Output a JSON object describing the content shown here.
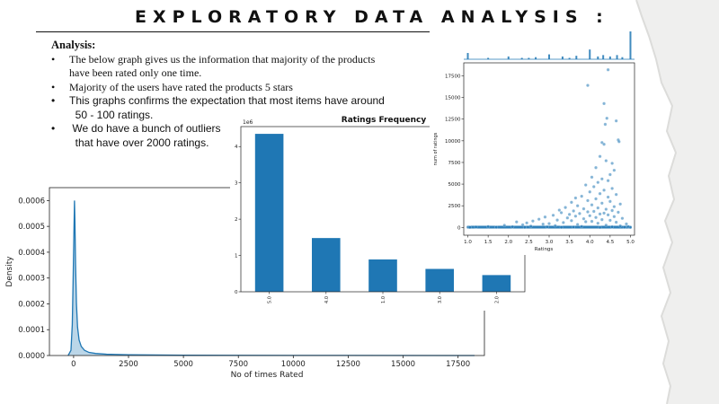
{
  "slide": {
    "title": "EXPLORATORY DATA ANALYSIS :",
    "colors": {
      "background": "#ffffff",
      "torn_edge": "#efefee",
      "accent": "#1f77b4"
    }
  },
  "analysis": {
    "heading": "Analysis:",
    "bullets": [
      {
        "line1": "The below graph gives  us the information that majority of the products",
        "line2": "have been rated only one time."
      },
      {
        "line1": "Majority of the users have rated the products 5 stars",
        "line2": ""
      },
      {
        "line1": "This graphs confirms the expectation that most items have around",
        "line2": "  50 - 100 ratings."
      },
      {
        "line1": " We do have a bunch of outliers",
        "line2": "  that have over 2000 ratings."
      }
    ]
  },
  "chart_data": [
    {
      "id": "density",
      "type": "area",
      "title": "",
      "xlabel": "No of times Rated",
      "ylabel": "Density",
      "xlim": [
        -1100,
        18700
      ],
      "ylim": [
        0,
        0.00065
      ],
      "x_ticks": [
        "0",
        "2500",
        "5000",
        "7500",
        "10000",
        "12500",
        "15000",
        "17500"
      ],
      "x_tick_values": [
        0,
        2500,
        5000,
        7500,
        10000,
        12500,
        15000,
        17500
      ],
      "y_ticks": [
        "0.0000",
        "0.0001",
        "0.0002",
        "0.0003",
        "0.0004",
        "0.0005",
        "0.0006"
      ],
      "y_tick_values": [
        0,
        0.0001,
        0.0002,
        0.0003,
        0.0004,
        0.0005,
        0.0006
      ],
      "x": [
        -250,
        -120,
        -60,
        -20,
        10,
        40,
        60,
        90,
        130,
        180,
        250,
        350,
        500,
        700,
        1000,
        1500,
        2500,
        5000,
        10000,
        18250
      ],
      "y": [
        0,
        2e-05,
        0.00012,
        0.0003,
        0.00045,
        0.0006,
        0.00052,
        0.00035,
        0.0002,
        0.00011,
        6e-05,
        3.5e-05,
        2e-05,
        1.2e-05,
        8e-06,
        5e-06,
        3e-06,
        1e-06,
        5e-07,
        0
      ],
      "grid": false
    },
    {
      "id": "ratings-frequency",
      "type": "bar",
      "title": "Ratings Frequency",
      "xlabel": "",
      "ylabel": "",
      "offset_label": "1e6",
      "categories": [
        "5.0",
        "4.0",
        "1.0",
        "3.0",
        "2.0"
      ],
      "values": [
        4.35,
        1.48,
        0.89,
        0.63,
        0.46
      ],
      "ylim": [
        0,
        4.55
      ],
      "y_ticks": [
        "0",
        "1",
        "2",
        "3",
        "4"
      ],
      "y_tick_values": [
        0,
        1,
        2,
        3,
        4
      ],
      "grid": false
    },
    {
      "id": "ratings-vs-count",
      "type": "scatter",
      "title": "",
      "xlabel": "Ratings",
      "ylabel": "num of ratings",
      "xlim": [
        0.9,
        5.1
      ],
      "ylim": [
        -900,
        19000
      ],
      "x_ticks": [
        "1.0",
        "1.5",
        "2.0",
        "2.5",
        "3.0",
        "3.5",
        "4.0",
        "4.5",
        "5.0"
      ],
      "x_tick_values": [
        1.0,
        1.5,
        2.0,
        2.5,
        3.0,
        3.5,
        4.0,
        4.5,
        5.0
      ],
      "y_ticks": [
        "0",
        "2500",
        "5000",
        "7500",
        "10000",
        "12500",
        "15000",
        "17500"
      ],
      "y_tick_values": [
        0,
        2500,
        5000,
        7500,
        10000,
        12500,
        15000,
        17500
      ],
      "points": [
        [
          4.45,
          18200
        ],
        [
          3.95,
          16400
        ],
        [
          4.35,
          14300
        ],
        [
          4.65,
          12300
        ],
        [
          4.42,
          12600
        ],
        [
          4.38,
          11900
        ],
        [
          4.7,
          10100
        ],
        [
          4.72,
          9900
        ],
        [
          4.3,
          9800
        ],
        [
          4.35,
          9600
        ],
        [
          4.25,
          8200
        ],
        [
          4.4,
          7700
        ],
        [
          4.55,
          7400
        ],
        [
          4.15,
          6900
        ],
        [
          4.6,
          6600
        ],
        [
          4.5,
          6100
        ],
        [
          4.05,
          5800
        ],
        [
          4.3,
          5600
        ],
        [
          4.45,
          5400
        ],
        [
          4.2,
          5200
        ],
        [
          3.9,
          4900
        ],
        [
          4.1,
          4700
        ],
        [
          4.55,
          4500
        ],
        [
          4.35,
          4300
        ],
        [
          4.0,
          4100
        ],
        [
          4.25,
          3900
        ],
        [
          4.65,
          3800
        ],
        [
          3.8,
          3600
        ],
        [
          4.45,
          3500
        ],
        [
          3.65,
          3400
        ],
        [
          4.15,
          3300
        ],
        [
          3.95,
          3100
        ],
        [
          4.5,
          3000
        ],
        [
          3.55,
          2900
        ],
        [
          4.3,
          2800
        ],
        [
          4.75,
          2700
        ],
        [
          4.05,
          2600
        ],
        [
          3.7,
          2500
        ],
        [
          4.6,
          2400
        ],
        [
          3.4,
          2300
        ],
        [
          4.2,
          2250
        ],
        [
          3.85,
          2150
        ],
        [
          4.4,
          2100
        ],
        [
          3.25,
          2000
        ],
        [
          4.55,
          1950
        ],
        [
          3.6,
          1900
        ],
        [
          4.1,
          1850
        ],
        [
          3.95,
          1800
        ],
        [
          4.7,
          1750
        ],
        [
          3.3,
          1700
        ],
        [
          4.35,
          1650
        ],
        [
          3.75,
          1600
        ],
        [
          4.25,
          1550
        ],
        [
          3.5,
          1500
        ],
        [
          4.45,
          1450
        ],
        [
          3.1,
          1400
        ],
        [
          4.0,
          1350
        ],
        [
          3.65,
          1300
        ],
        [
          4.6,
          1250
        ],
        [
          2.9,
          1200
        ],
        [
          4.15,
          1150
        ],
        [
          3.45,
          1100
        ],
        [
          4.8,
          1050
        ],
        [
          3.85,
          1000
        ],
        [
          2.75,
          950
        ],
        [
          4.3,
          900
        ],
        [
          3.2,
          850
        ],
        [
          4.5,
          820
        ],
        [
          3.55,
          780
        ],
        [
          2.6,
          740
        ],
        [
          4.05,
          700
        ],
        [
          3.9,
          660
        ],
        [
          2.2,
          640
        ],
        [
          4.65,
          600
        ],
        [
          3.35,
          560
        ],
        [
          2.45,
          520
        ],
        [
          4.2,
          480
        ],
        [
          3.0,
          440
        ],
        [
          4.9,
          400
        ],
        [
          2.85,
          380
        ],
        [
          3.7,
          340
        ],
        [
          2.35,
          300
        ],
        [
          4.4,
          260
        ],
        [
          1.9,
          240
        ],
        [
          3.15,
          200
        ],
        [
          4.75,
          180
        ],
        [
          2.55,
          150
        ],
        [
          3.8,
          120
        ],
        [
          1.5,
          100
        ],
        [
          4.95,
          90
        ],
        [
          2.1,
          80
        ],
        [
          4.55,
          70
        ],
        [
          2.95,
          60
        ],
        [
          1.2,
          50
        ],
        [
          3.6,
          40
        ],
        [
          4.85,
          30
        ],
        [
          1.7,
          25
        ],
        [
          2.4,
          20
        ],
        [
          3.3,
          15
        ],
        [
          1.05,
          10
        ],
        [
          5.0,
          10
        ],
        [
          4.25,
          5
        ]
      ],
      "marginal_top_x": [
        1.0,
        1.5,
        2.0,
        2.33,
        2.5,
        2.67,
        3.0,
        3.33,
        3.5,
        3.67,
        4.0,
        4.2,
        4.33,
        4.5,
        4.67,
        4.8,
        5.0
      ],
      "marginal_top_counts": [
        9,
        2,
        4,
        2,
        2,
        3,
        7,
        4,
        2,
        5,
        14,
        4,
        6,
        4,
        6,
        3,
        40
      ],
      "grid": false
    }
  ]
}
